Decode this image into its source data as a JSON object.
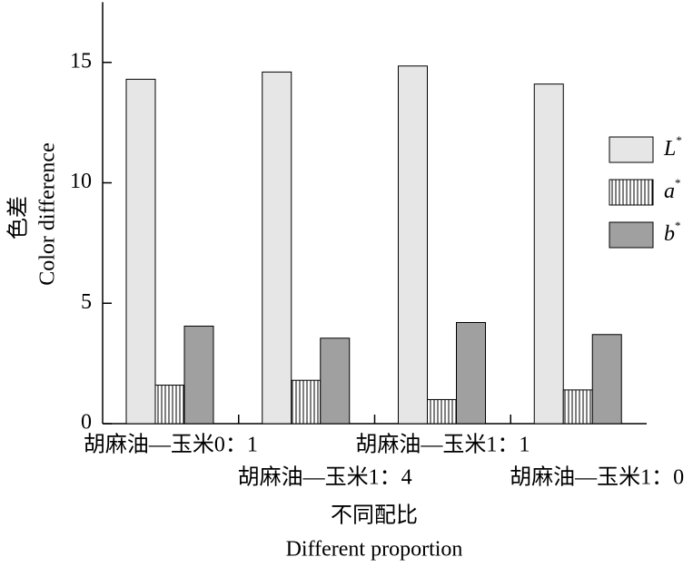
{
  "chart_data": {
    "type": "bar",
    "y_label_zh": "色差",
    "y_label_en": "Color difference",
    "x_label_zh": "不同配比",
    "x_label_en": "Different proportion",
    "categories": [
      "胡麻油—玉米0：1",
      "胡麻油—玉米1：4",
      "胡麻油—玉米1：1",
      "胡麻油—玉米1：0"
    ],
    "series": [
      {
        "name": "L*",
        "color": "#e6e6e6",
        "values": [
          14.3,
          14.6,
          14.85,
          14.1
        ]
      },
      {
        "name": "a*",
        "color": "hatch",
        "values": [
          1.6,
          1.8,
          1.0,
          1.4
        ]
      },
      {
        "name": "b*",
        "color": "#a0a0a0",
        "values": [
          4.05,
          3.55,
          4.2,
          3.7
        ]
      }
    ],
    "ylim": [
      0,
      17.5
    ],
    "yticks": [
      0,
      5,
      10,
      15
    ],
    "legend": "right"
  }
}
